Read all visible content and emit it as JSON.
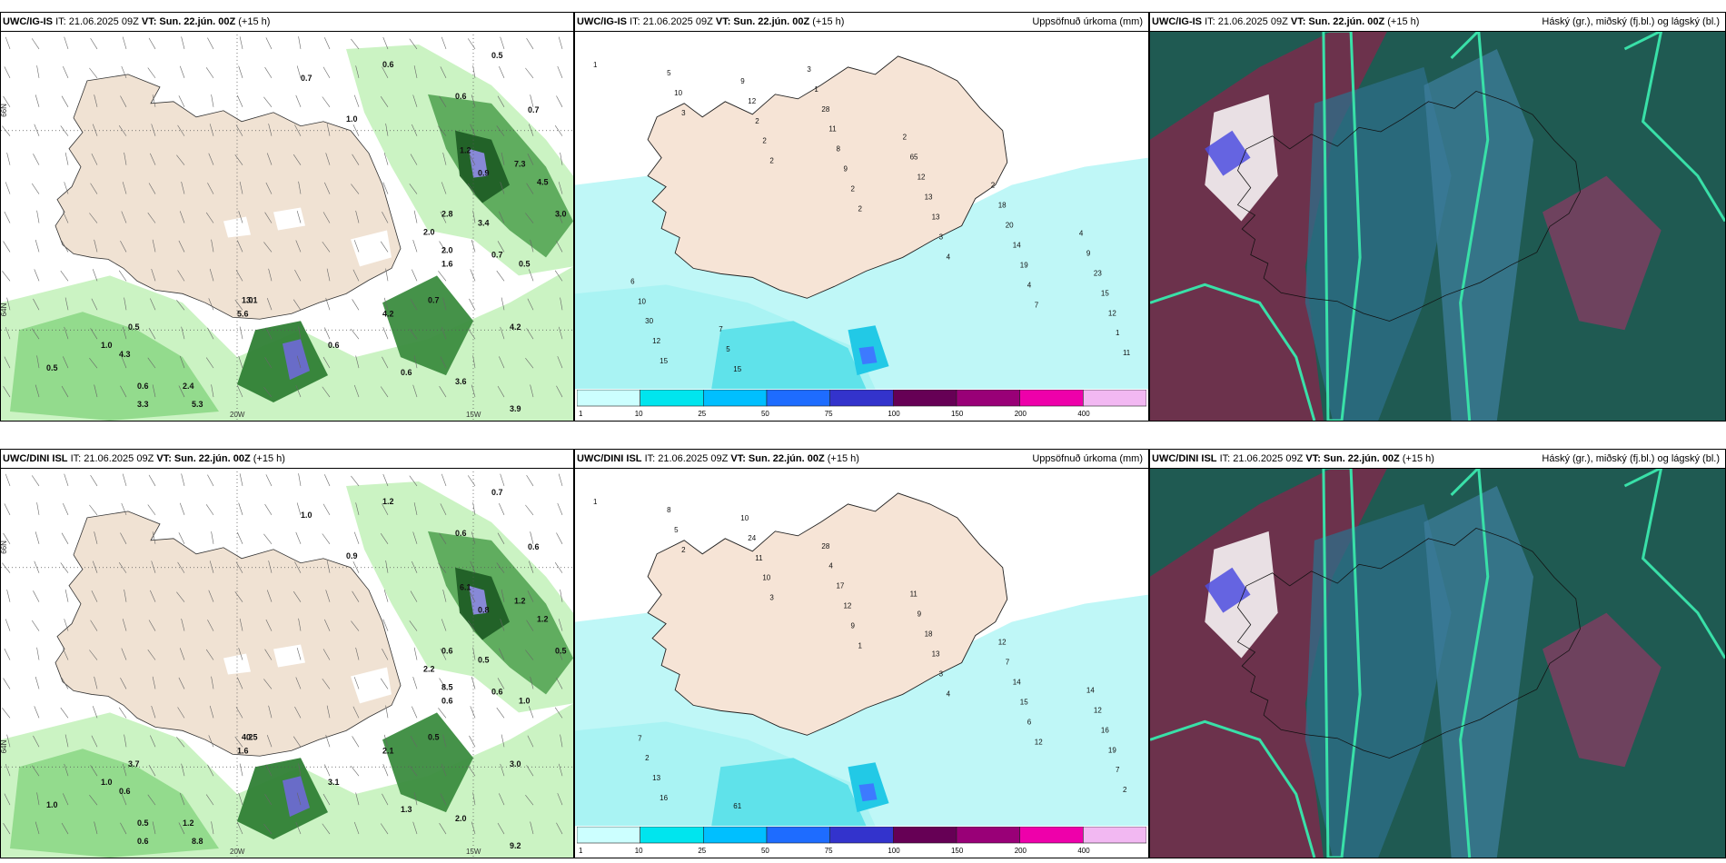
{
  "panels": [
    {
      "model": "UWC/IG-IS",
      "issue": "IT: 21.06.2025 09Z",
      "vt_label": "VT:",
      "valid": "Sun. 22.jún. 00Z",
      "lead": "(+15 h)",
      "right_title": "",
      "kind": "precip",
      "lat_labels": [
        "66N",
        "64N"
      ],
      "lon_labels": [
        "20W",
        "15W"
      ],
      "values": [
        "0.7",
        "0.6",
        "0.5",
        "1.0",
        "0.6",
        "0.7",
        "1.2",
        "0.9",
        "7.3",
        "4.5",
        "3.0",
        "2.8",
        "3.4",
        "0.7",
        "0.5",
        "1.0",
        "0.6",
        "1.0",
        "4.3",
        "0.5",
        "0.6",
        "2.4",
        "3.3",
        "5.3",
        "4.2",
        "3.1",
        "1.6",
        "0.7",
        "0.6",
        "3.6",
        "3.9",
        "5.6",
        "4.2",
        "2.0",
        "2.0",
        "0.5"
      ]
    },
    {
      "model": "UWC/IG-IS",
      "issue": "IT: 21.06.2025 09Z",
      "vt_label": "VT:",
      "valid": "Sun. 22.jún. 00Z",
      "lead": "(+15 h)",
      "right_title": "Uppsöfnuð úrkoma (mm)",
      "kind": "accum",
      "values": [
        "1",
        "3",
        "2",
        "2",
        "4",
        "7",
        "11",
        "10",
        "2",
        "2",
        "3",
        "4",
        "1",
        "5",
        "2",
        "9",
        "13",
        "19",
        "12",
        "15",
        "12",
        "8",
        "13",
        "14",
        "15",
        "12",
        "9",
        "11",
        "12",
        "20",
        "23",
        "30",
        "15",
        "28",
        "65",
        "18",
        "9",
        "10",
        "5",
        "1",
        "2",
        "2",
        "4",
        "6",
        "7",
        "3"
      ],
      "colorbar": {
        "ticks": [
          "1",
          "10",
          "25",
          "50",
          "75",
          "100",
          "150",
          "200",
          "400"
        ],
        "colors": [
          "#ccffff",
          "#00e5ee",
          "#00bfff",
          "#1e6cff",
          "#3333cc",
          "#660055",
          "#990077",
          "#ee00aa",
          "#f2b8f2"
        ]
      }
    },
    {
      "model": "UWC/IG-IS",
      "issue": "IT: 21.06.2025 09Z",
      "vt_label": "VT:",
      "valid": "Sun. 22.jún. 00Z",
      "lead": "(+15 h)",
      "right_title": "Háský (gr.), miðský (fj.bl.) og lágský (bl.)",
      "kind": "cloud"
    },
    {
      "model": "UWC/DINI ISL",
      "issue": "IT: 21.06.2025 09Z",
      "vt_label": "VT:",
      "valid": "Sun. 22.jún. 00Z",
      "lead": "(+15 h)",
      "right_title": "",
      "kind": "precip",
      "lat_labels": [
        "66N",
        "64N"
      ],
      "lon_labels": [
        "20W",
        "15W"
      ],
      "values": [
        "1.0",
        "1.2",
        "0.7",
        "0.9",
        "0.6",
        "0.6",
        "6.1",
        "0.8",
        "1.2",
        "1.2",
        "0.5",
        "0.6",
        "0.5",
        "0.6",
        "1.0",
        "4.2",
        "3.1",
        "1.0",
        "0.6",
        "1.0",
        "0.5",
        "1.2",
        "0.6",
        "8.8",
        "3.0",
        "0.5",
        "0.6",
        "0.5",
        "1.3",
        "2.0",
        "9.2",
        "1.6",
        "2.1",
        "8.5",
        "2.2",
        "3.7"
      ]
    },
    {
      "model": "UWC/DINI ISL",
      "issue": "IT: 21.06.2025 09Z",
      "vt_label": "VT:",
      "valid": "Sun. 22.jún. 00Z",
      "lead": "(+15 h)",
      "right_title": "Uppsöfnuð úrkoma (mm)",
      "kind": "accum",
      "values": [
        "1",
        "2",
        "3",
        "1",
        "4",
        "12",
        "2",
        "5",
        "10",
        "9",
        "3",
        "6",
        "7",
        "8",
        "11",
        "12",
        "13",
        "15",
        "19",
        "16",
        "24",
        "17",
        "18",
        "14",
        "16",
        "13",
        "10",
        "4",
        "9",
        "7",
        "12",
        "2",
        "61",
        "28",
        "11",
        "12",
        "14",
        "7"
      ],
      "colorbar": {
        "ticks": [
          "1",
          "10",
          "25",
          "50",
          "75",
          "100",
          "150",
          "200",
          "400"
        ],
        "colors": [
          "#ccffff",
          "#00e5ee",
          "#00bfff",
          "#1e6cff",
          "#3333cc",
          "#660055",
          "#990077",
          "#ee00aa",
          "#f2b8f2"
        ]
      }
    },
    {
      "model": "UWC/DINI ISL",
      "issue": "IT: 21.06.2025 09Z",
      "vt_label": "VT:",
      "valid": "Sun. 22.jún. 00Z",
      "lead": "(+15 h)",
      "right_title": "Háský (gr.), miðský (fj.bl.) og lágský (bl.)",
      "kind": "cloud"
    }
  ]
}
